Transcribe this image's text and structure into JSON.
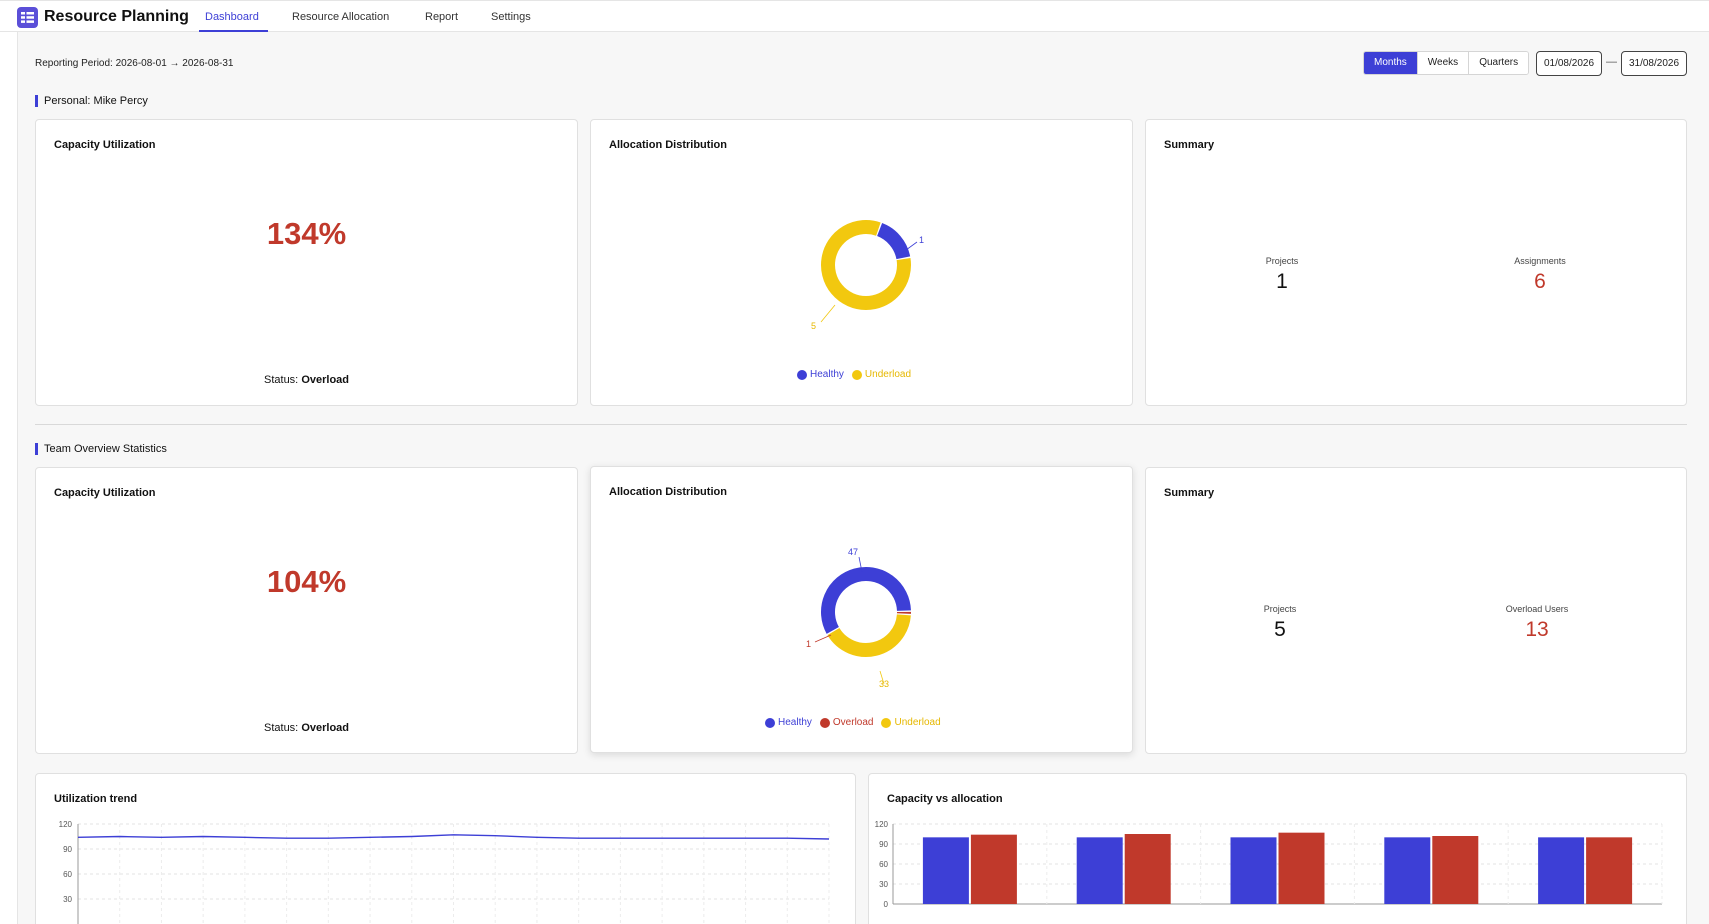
{
  "app": {
    "title": "Resource Planning"
  },
  "nav": {
    "tabs": [
      "Dashboard",
      "Resource Allocation",
      "Report",
      "Settings"
    ],
    "active": "Dashboard"
  },
  "toolbar": {
    "period": "Reporting Period: 2026-08-01 → 2026-08-31",
    "ranges": [
      "Months",
      "Weeks",
      "Quarters"
    ],
    "active_range": "Months",
    "date_from": "01/08/2026",
    "date_sep": "—",
    "date_to": "31/08/2026"
  },
  "personal": {
    "section_title": "Personal: Mike Percy",
    "capacity": {
      "title": "Capacity Utilization",
      "value": "134%",
      "status_label": "Status:",
      "status": "Overload"
    },
    "allocation": {
      "title": "Allocation Distribution",
      "slices": [
        {
          "name": "Healthy",
          "value": 1,
          "color": "#3d3fd6"
        },
        {
          "name": "Underload",
          "value": 5,
          "color": "#f2c80f"
        }
      ],
      "labels": [
        "1",
        "5"
      ]
    },
    "summary": {
      "title": "Summary",
      "left_label": "Projects",
      "left_value": "1",
      "right_label": "Assignments",
      "right_value": "6"
    }
  },
  "team": {
    "section_title": "Team Overview Statistics",
    "capacity": {
      "title": "Capacity Utilization",
      "value": "104%",
      "status_label": "Status:",
      "status": "Overload"
    },
    "allocation": {
      "title": "Allocation Distribution",
      "slices": [
        {
          "name": "Healthy",
          "value": 47,
          "color": "#3d3fd6"
        },
        {
          "name": "Overload",
          "value": 1,
          "color": "#c0392b"
        },
        {
          "name": "Underload",
          "value": 33,
          "color": "#f2c80f"
        }
      ],
      "labels": [
        "47",
        "1",
        "33"
      ]
    },
    "summary": {
      "title": "Summary",
      "left_label": "Projects",
      "left_value": "5",
      "right_label": "Overload Users",
      "right_value": "13"
    }
  },
  "chart_data": [
    {
      "type": "line",
      "title": "Utilization trend",
      "ylim": [
        0,
        120
      ],
      "yticks": [
        "120",
        "90",
        "60",
        "30"
      ],
      "values": [
        104,
        105,
        104,
        105,
        104,
        103,
        103,
        104,
        105,
        107,
        106,
        104,
        103,
        103,
        103,
        103,
        103,
        103,
        102
      ],
      "color": "#3d3fd6",
      "grid": true
    },
    {
      "type": "bar",
      "title": "Capacity vs allocation",
      "ylim": [
        0,
        120
      ],
      "yticks": [
        "120",
        "90",
        "60",
        "30",
        "0"
      ],
      "series": [
        {
          "values": [
            100,
            100,
            100,
            100,
            100
          ],
          "color": "#3d3fd6"
        },
        {
          "values": [
            104,
            105,
            107,
            102,
            100
          ],
          "color": "#c0392b"
        }
      ],
      "grid": true
    }
  ]
}
